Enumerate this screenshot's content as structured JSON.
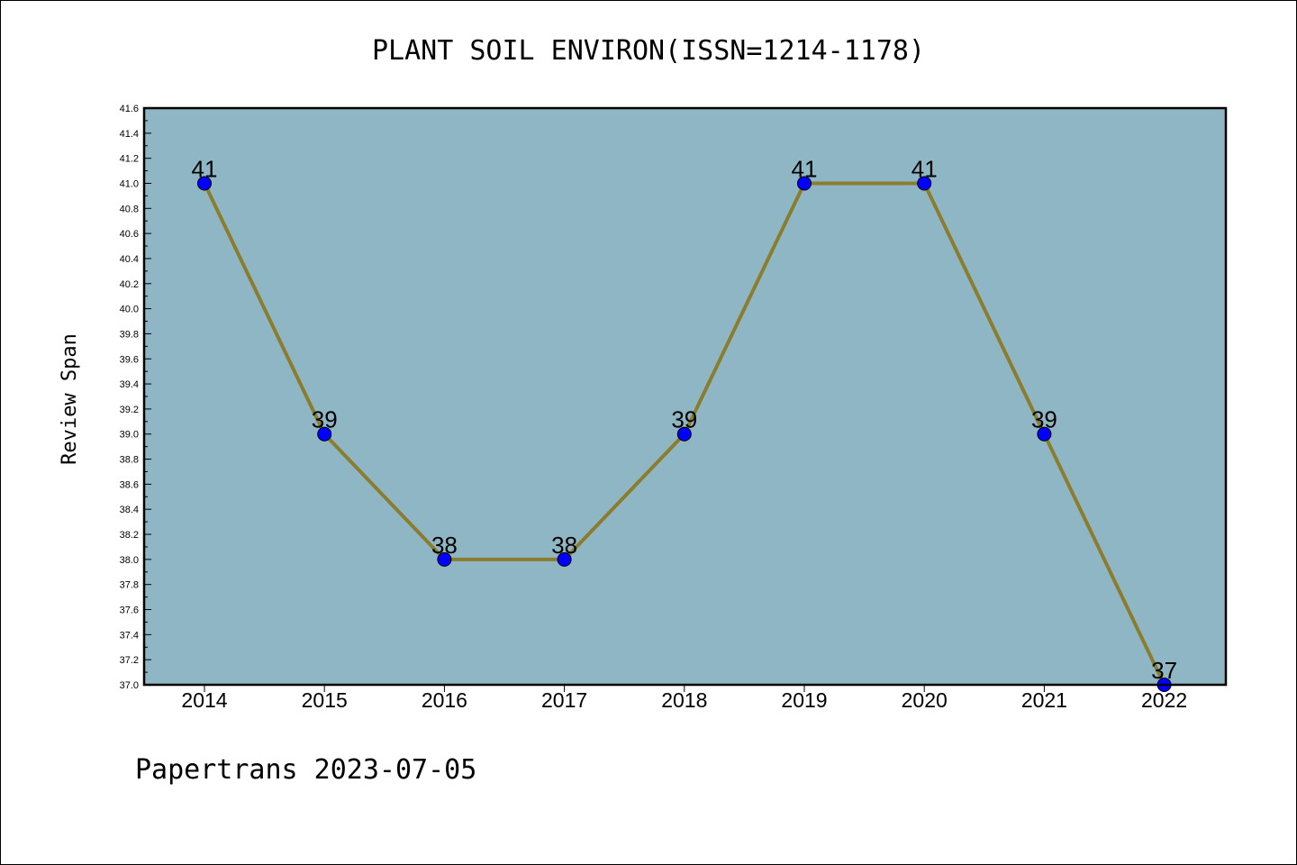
{
  "chart_data": {
    "type": "line",
    "title": "PLANT SOIL ENVIRON(ISSN=1214-1178)",
    "xlabel": "",
    "ylabel": "Review Span",
    "categories": [
      "2014",
      "2015",
      "2016",
      "2017",
      "2018",
      "2019",
      "2020",
      "2021",
      "2022"
    ],
    "values": [
      41,
      39,
      38,
      38,
      39,
      41,
      41,
      39,
      37
    ],
    "data_labels": [
      "41",
      "39",
      "38",
      "38",
      "39",
      "41",
      "41",
      "39",
      "37"
    ],
    "ylim": [
      37.0,
      41.6
    ],
    "yticks": [
      "37.0",
      "37.2",
      "37.4",
      "37.6",
      "37.8",
      "38.0",
      "38.2",
      "38.4",
      "38.6",
      "38.8",
      "39.0",
      "39.2",
      "39.4",
      "39.6",
      "39.8",
      "40.0",
      "40.2",
      "40.4",
      "40.6",
      "40.8",
      "41.0",
      "41.2",
      "41.4",
      "41.6"
    ],
    "grid": false,
    "legend": "none",
    "colors": {
      "plot_background": "#8fb6c4",
      "line": "#8b7d2e",
      "marker": "#0000ff"
    }
  },
  "footer": "Papertrans 2023-07-05"
}
